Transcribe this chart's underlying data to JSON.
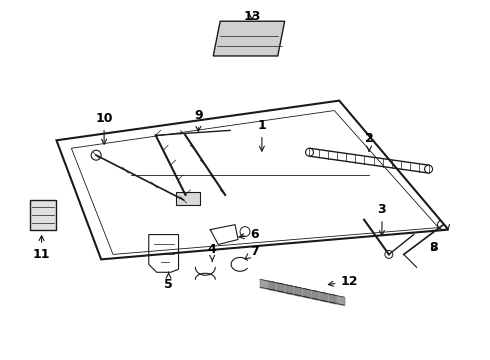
{
  "background_color": "#ffffff",
  "line_color": "#1a1a1a",
  "label_color": "#000000",
  "figsize": [
    4.9,
    3.6
  ],
  "dpi": 100
}
